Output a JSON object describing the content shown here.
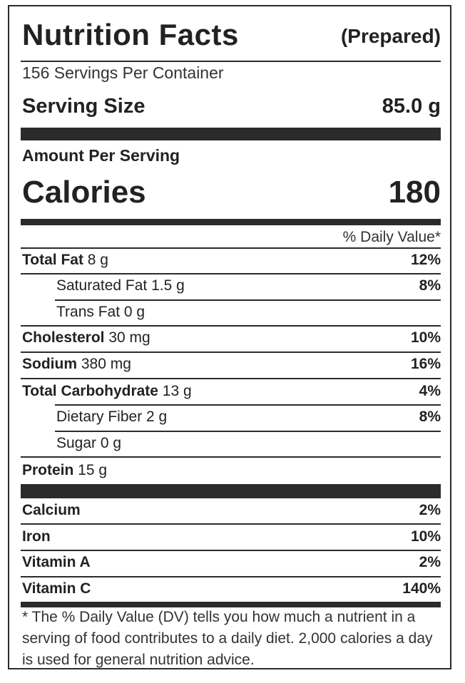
{
  "header": {
    "title": "Nutrition Facts",
    "subtitle": "(Prepared)"
  },
  "servings_per_container": "156 Servings Per Container",
  "serving_size": {
    "label": "Serving Size",
    "value": "85.0 g"
  },
  "amount_per_serving": "Amount Per Serving",
  "calories": {
    "label": "Calories",
    "value": "180"
  },
  "daily_value_header": "% Daily Value*",
  "nutrients": [
    {
      "name": "Total Fat",
      "amount": " 8 g",
      "dv": "12%"
    },
    {
      "name": "Saturated Fat",
      "amount": " 1.5 g",
      "dv": "8%"
    },
    {
      "name": "Trans Fat",
      "amount": " 0 g",
      "dv": ""
    },
    {
      "name": "Cholesterol",
      "amount": " 30 mg",
      "dv": "10%"
    },
    {
      "name": "Sodium",
      "amount": " 380 mg",
      "dv": "16%"
    },
    {
      "name": "Total Carbohydrate",
      "amount": " 13 g",
      "dv": "4%"
    },
    {
      "name": "Dietary Fiber",
      "amount": " 2 g",
      "dv": "8%"
    },
    {
      "name": "Sugar",
      "amount": " 0 g",
      "dv": ""
    },
    {
      "name": "Protein",
      "amount": " 15 g",
      "dv": ""
    }
  ],
  "vitamins": [
    {
      "name": "Calcium",
      "dv": "2%"
    },
    {
      "name": "Iron",
      "dv": "10%"
    },
    {
      "name": "Vitamin A",
      "dv": "2%"
    },
    {
      "name": "Vitamin C",
      "dv": "140%"
    }
  ],
  "footnote": "* The % Daily Value (DV) tells you how much a nutrient in a serving of food contributes to a daily diet. 2,000 calories a day is used for general nutrition advice."
}
